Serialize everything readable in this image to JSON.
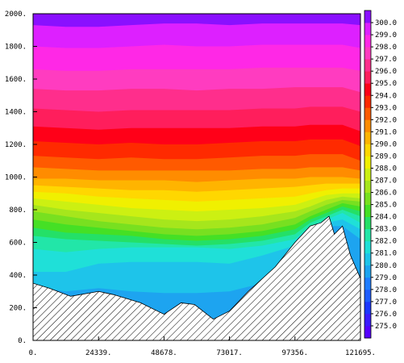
{
  "chart_data": {
    "type": "heatmap",
    "title": "",
    "xlabel": "",
    "ylabel": "",
    "x_ticks": [
      "0.",
      "24339.",
      "48678.",
      "73017.",
      "97356.",
      "121695."
    ],
    "x_tick_values": [
      0,
      24339,
      48678,
      73017,
      97356,
      121695
    ],
    "y_ticks": [
      "0.",
      "200.",
      "400.",
      "600.",
      "800.",
      "1000.",
      "1200.",
      "1400.",
      "1600.",
      "1800.",
      "2000."
    ],
    "y_tick_values": [
      0,
      200,
      400,
      600,
      800,
      1000,
      1200,
      1400,
      1600,
      1800,
      2000
    ],
    "xlim": [
      0,
      121695
    ],
    "ylim": [
      0,
      2000
    ],
    "grid": false,
    "colorbar": {
      "labels": [
        "275.0",
        "276.0",
        "277.0",
        "278.0",
        "279.0",
        "280.0",
        "281.0",
        "282.0",
        "283.0",
        "284.0",
        "285.0",
        "286.0",
        "287.0",
        "288.0",
        "289.0",
        "290.0",
        "291.0",
        "292.0",
        "293.0",
        "294.0",
        "295.0",
        "296.0",
        "297.0",
        "298.0",
        "299.0",
        "300.0"
      ],
      "values": [
        275,
        276,
        277,
        278,
        279,
        280,
        281,
        282,
        283,
        284,
        285,
        286,
        287,
        288,
        289,
        290,
        291,
        292,
        293,
        294,
        295,
        296,
        297,
        298,
        299,
        300
      ],
      "colors": [
        "#5500ff",
        "#3a1cff",
        "#1c37ff",
        "#1f5cff",
        "#1f7dff",
        "#1da4f0",
        "#1ec4ea",
        "#1fe0d8",
        "#22e6a8",
        "#24e067",
        "#45e025",
        "#78e020",
        "#a6e61c",
        "#ccf012",
        "#f0f000",
        "#ffd700",
        "#ffb400",
        "#ff8c00",
        "#ff5a00",
        "#ff2a00",
        "#ff0018",
        "#ff1e5c",
        "#ff2e8c",
        "#ff3cc0",
        "#ff28e6",
        "#dd20ff",
        "#8a10ff"
      ]
    },
    "terrain": {
      "description_x": [
        0,
        6000,
        14000,
        24339,
        30000,
        40000,
        48678,
        55000,
        60000,
        67000,
        73017,
        80000,
        90000,
        97356,
        103000,
        107000,
        110000,
        112000,
        115000,
        118000,
        121695
      ],
      "elevation": [
        350,
        320,
        270,
        300,
        280,
        230,
        160,
        230,
        220,
        130,
        180,
        300,
        450,
        600,
        700,
        720,
        760,
        650,
        700,
        520,
        380
      ]
    },
    "isotherm_heights": {
      "x": [
        0,
        12169,
        24339,
        36508,
        48678,
        60847,
        73017,
        85186,
        97356,
        103000,
        109000,
        115000,
        121695
      ],
      "levels": {
        "280": [
          330,
          300,
          320,
          300,
          290,
          290,
          300,
          350,
          480,
          620,
          700,
          700,
          620
        ],
        "281": [
          420,
          420,
          470,
          480,
          480,
          480,
          470,
          520,
          580,
          660,
          720,
          740,
          680
        ],
        "282": [
          560,
          540,
          560,
          570,
          570,
          570,
          560,
          580,
          620,
          700,
          740,
          780,
          720
        ],
        "283": [
          640,
          620,
          610,
          600,
          590,
          580,
          590,
          610,
          650,
          720,
          760,
          800,
          760
        ],
        "284": [
          690,
          660,
          650,
          640,
          620,
          610,
          620,
          640,
          680,
          740,
          780,
          820,
          790
        ],
        "285": [
          740,
          710,
          690,
          670,
          650,
          640,
          650,
          670,
          710,
          760,
          800,
          840,
          820
        ],
        "286": [
          790,
          760,
          730,
          710,
          690,
          680,
          690,
          710,
          750,
          790,
          830,
          860,
          850
        ],
        "287": [
          830,
          800,
          780,
          760,
          740,
          730,
          740,
          760,
          790,
          820,
          860,
          880,
          870
        ],
        "288": [
          870,
          850,
          830,
          810,
          800,
          790,
          800,
          810,
          830,
          860,
          890,
          900,
          900
        ],
        "289": [
          910,
          900,
          880,
          870,
          860,
          850,
          860,
          870,
          880,
          900,
          920,
          930,
          930
        ],
        "290": [
          950,
          940,
          930,
          920,
          920,
          910,
          920,
          930,
          940,
          950,
          960,
          960,
          960
        ],
        "291": [
          990,
          990,
          980,
          980,
          980,
          970,
          980,
          990,
          990,
          1000,
          1000,
          1000,
          990
        ],
        "292": [
          1060,
          1050,
          1040,
          1040,
          1040,
          1040,
          1040,
          1050,
          1050,
          1060,
          1060,
          1060,
          1040
        ],
        "293": [
          1130,
          1120,
          1110,
          1120,
          1110,
          1110,
          1120,
          1130,
          1130,
          1140,
          1140,
          1140,
          1100
        ],
        "294": [
          1220,
          1210,
          1200,
          1210,
          1200,
          1200,
          1210,
          1220,
          1220,
          1230,
          1230,
          1230,
          1190
        ],
        "295": [
          1310,
          1300,
          1290,
          1300,
          1300,
          1300,
          1300,
          1310,
          1310,
          1320,
          1320,
          1320,
          1280
        ],
        "296": [
          1420,
          1410,
          1400,
          1410,
          1410,
          1410,
          1410,
          1420,
          1420,
          1430,
          1430,
          1430,
          1400
        ],
        "297": [
          1540,
          1530,
          1530,
          1540,
          1540,
          1530,
          1540,
          1540,
          1550,
          1550,
          1550,
          1550,
          1520
        ],
        "298": [
          1660,
          1650,
          1650,
          1660,
          1660,
          1660,
          1660,
          1670,
          1670,
          1670,
          1670,
          1670,
          1650
        ],
        "299": [
          1800,
          1790,
          1790,
          1800,
          1810,
          1800,
          1800,
          1810,
          1810,
          1810,
          1810,
          1810,
          1790
        ],
        "300": [
          1930,
          1920,
          1920,
          1930,
          1940,
          1940,
          1930,
          1940,
          1940,
          1940,
          1940,
          1940,
          1930
        ]
      }
    }
  }
}
